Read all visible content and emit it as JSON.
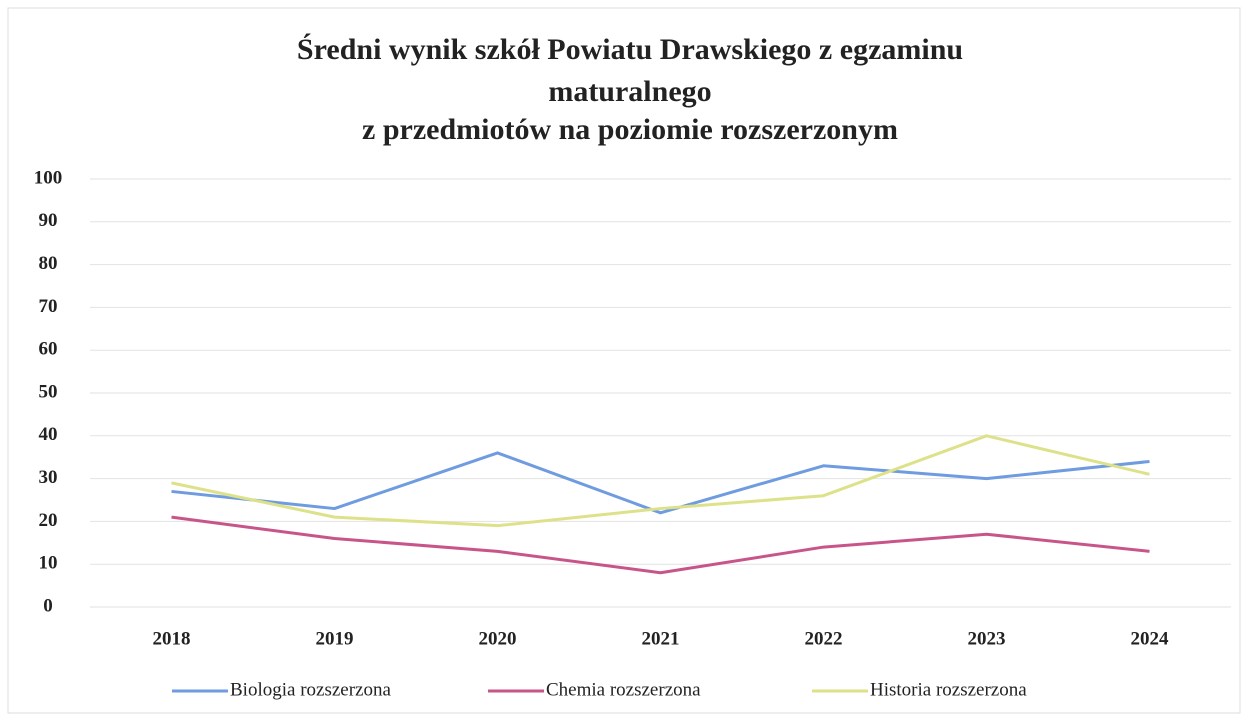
{
  "chart_data": {
    "type": "line",
    "title": [
      "Średni wynik szkół Powiatu Drawskiego z egzaminu",
      "maturalnego",
      "z przedmiotów na poziomie rozszerzonym"
    ],
    "categories": [
      "2018",
      "2019",
      "2020",
      "2021",
      "2022",
      "2023",
      "2024"
    ],
    "series": [
      {
        "name": "Biologia rozszerzona",
        "color": "#6f9be0",
        "values": [
          27,
          23,
          36,
          22,
          33,
          30,
          34
        ]
      },
      {
        "name": "Chemia rozszerzona",
        "color": "#c8558a",
        "values": [
          21,
          16,
          13,
          8,
          14,
          17,
          13
        ]
      },
      {
        "name": "Historia rozszerzona",
        "color": "#dde28a",
        "values": [
          29,
          21,
          19,
          23,
          26,
          40,
          31
        ]
      }
    ],
    "ylim": [
      0,
      100
    ],
    "yticks": [
      0,
      10,
      20,
      30,
      40,
      50,
      60,
      70,
      80,
      90,
      100
    ],
    "grid": true,
    "legend": "bottom"
  }
}
